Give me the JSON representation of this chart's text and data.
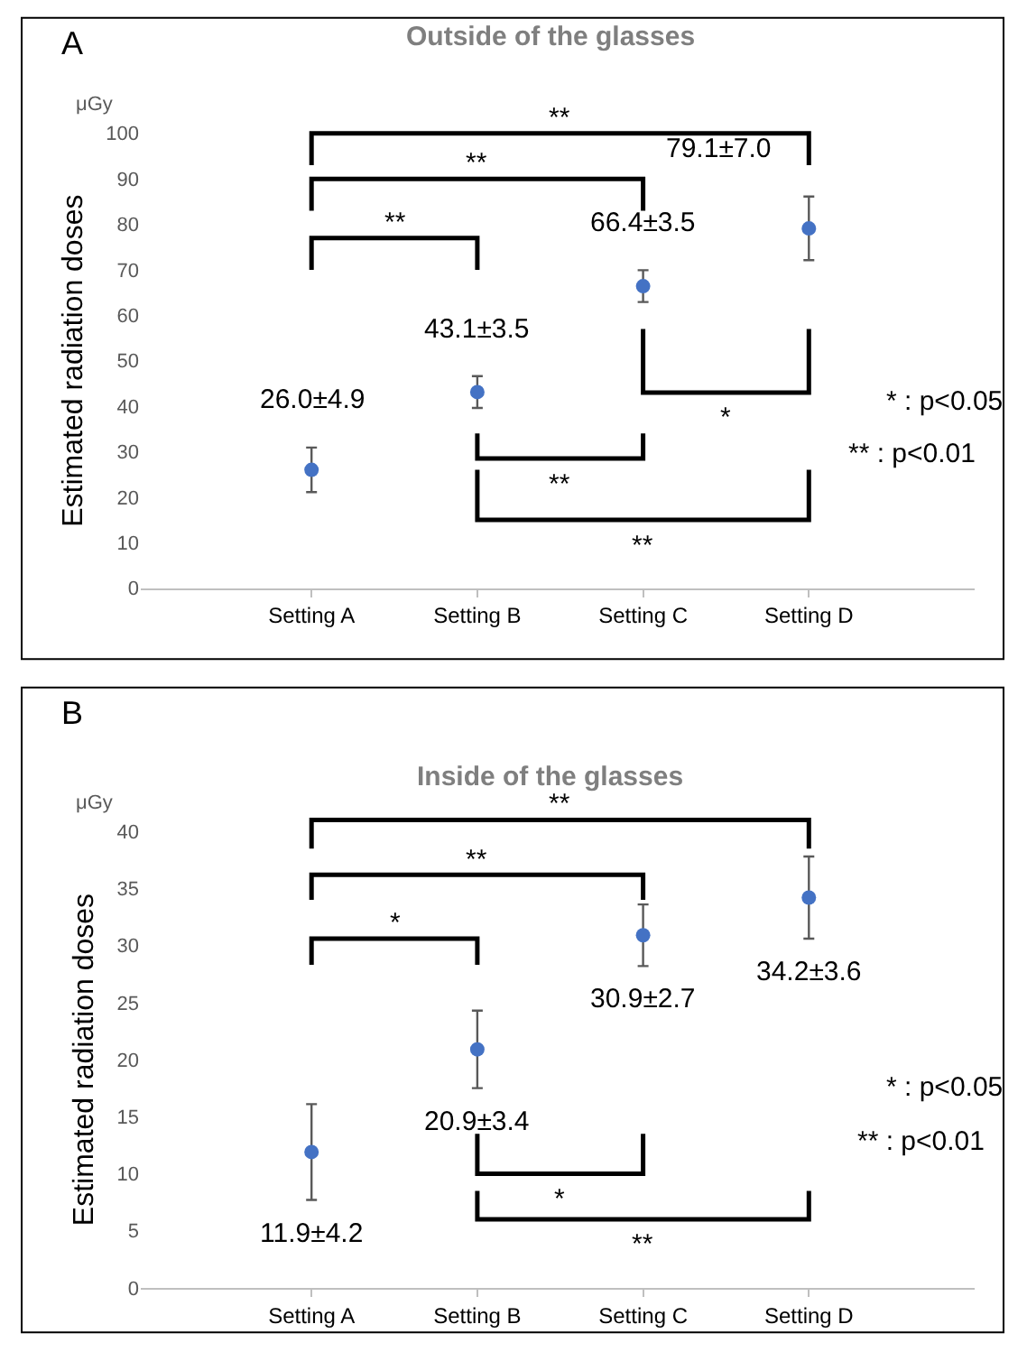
{
  "chart_data": [
    {
      "type": "scatter",
      "title": "Outside of the glasses",
      "ylabel": "Estimated radiation doses",
      "categories": [
        "Setting A",
        "Setting B",
        "Setting C",
        "Setting D"
      ],
      "values": [
        26.0,
        43.1,
        66.4,
        79.1
      ],
      "errors": [
        4.9,
        3.5,
        3.5,
        7.0
      ],
      "value_labels": [
        "26.0±4.9",
        "43.1±3.5",
        "66.4±3.5",
        "79.1±7.0"
      ],
      "color": "#4472c4",
      "marker": "circle",
      "ylim": [
        0,
        100
      ],
      "yticks": [
        0,
        10,
        20,
        30,
        40,
        50,
        60,
        70,
        80,
        90,
        100
      ],
      "annotations": [
        "A",
        "μGy",
        "**",
        "**",
        "**",
        "*",
        "**",
        "**",
        "* : p<0.05",
        "** : p<0.01"
      ]
    },
    {
      "type": "scatter",
      "title": "Inside of the glasses",
      "ylabel": "Estimated radiation doses",
      "categories": [
        "Setting A",
        "Setting B",
        "Setting C",
        "Setting D"
      ],
      "values": [
        11.9,
        20.9,
        30.9,
        34.2
      ],
      "errors": [
        4.2,
        3.4,
        2.7,
        3.6
      ],
      "value_labels": [
        "11.9±4.2",
        "20.9±3.4",
        "30.9±2.7",
        "34.2±3.6"
      ],
      "color": "#4472c4",
      "marker": "circle",
      "ylim": [
        0,
        40
      ],
      "yticks": [
        0,
        5,
        10,
        15,
        20,
        25,
        30,
        35,
        40
      ],
      "annotations": [
        "B",
        "μGy",
        "**",
        "**",
        "*",
        "*",
        "**",
        "* : p<0.05",
        "** : p<0.01"
      ]
    }
  ]
}
